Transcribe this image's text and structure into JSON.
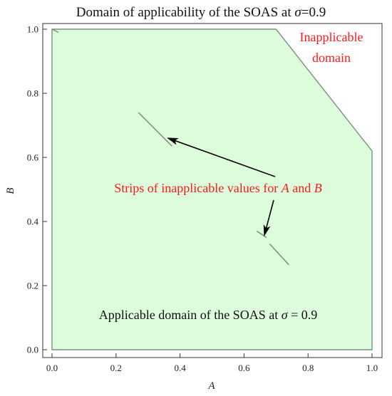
{
  "chart_data": {
    "type": "area",
    "title_prefix": "Domain of applicability of the SOAS at ",
    "title_sigma": "σ",
    "title_suffix": "=0.9",
    "xlabel": "A",
    "ylabel": "B",
    "xlim": [
      0.0,
      1.0
    ],
    "ylim": [
      0.0,
      1.0
    ],
    "x_ticks": [
      "0.0",
      "0.2",
      "0.4",
      "0.6",
      "0.8",
      "1.0"
    ],
    "x_tick_values": [
      0.0,
      0.2,
      0.4,
      0.6,
      0.8,
      1.0
    ],
    "y_ticks": [
      "0.0",
      "0.2",
      "0.4",
      "0.6",
      "0.8",
      "1.0"
    ],
    "y_tick_values": [
      0.0,
      0.2,
      0.4,
      0.6,
      0.8,
      1.0
    ],
    "applicable_region": {
      "x": [
        0.0,
        0.0,
        0.7,
        1.0,
        1.0
      ],
      "y": [
        0.0,
        1.0,
        1.0,
        0.62,
        0.0
      ]
    },
    "strips": [
      {
        "x": [
          0.0,
          0.02
        ],
        "y": [
          1.0,
          0.99
        ]
      },
      {
        "x": [
          0.27,
          0.375
        ],
        "y": [
          0.74,
          0.635
        ]
      },
      {
        "x": [
          0.64,
          0.67
        ],
        "y": [
          0.37,
          0.35
        ]
      },
      {
        "x": [
          0.68,
          0.74
        ],
        "y": [
          0.33,
          0.265
        ]
      }
    ],
    "annotations": {
      "inapplicable_line1": "Inapplicable",
      "inapplicable_line2": "domain",
      "strips_prefix": "Strips of inapplicable values for ",
      "strips_a": "A",
      "strips_and": " and ",
      "strips_b": "B",
      "applicable_prefix": "Applicable domain of the SOAS at ",
      "applicable_sigma": "σ",
      "applicable_suffix": " = 0.9"
    },
    "colors": {
      "fill": "#dcfcdc",
      "edge": "#7b8f7b",
      "inapplicable_text": "#ff1a1a",
      "arrow": "#000000"
    },
    "grid": false
  }
}
